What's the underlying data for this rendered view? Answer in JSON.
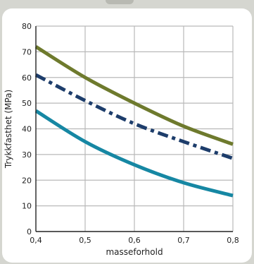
{
  "chart_data": {
    "type": "line",
    "title": "",
    "xlabel": "masseforhold",
    "ylabel": "Trykkfasthet (MPa)",
    "xlim": [
      0.4,
      0.8
    ],
    "ylim": [
      0,
      80
    ],
    "grid": true,
    "legend": "none",
    "x_ticks": [
      {
        "value": 0.4,
        "label": "0,4"
      },
      {
        "value": 0.5,
        "label": "0,5"
      },
      {
        "value": 0.6,
        "label": "0,6"
      },
      {
        "value": 0.7,
        "label": "0,7"
      },
      {
        "value": 0.8,
        "label": "0,8"
      }
    ],
    "y_ticks": [
      {
        "value": 0,
        "label": "0"
      },
      {
        "value": 10,
        "label": "10"
      },
      {
        "value": 20,
        "label": "20"
      },
      {
        "value": 30,
        "label": "30"
      },
      {
        "value": 40,
        "label": "40"
      },
      {
        "value": 50,
        "label": "50"
      },
      {
        "value": 60,
        "label": "60"
      },
      {
        "value": 70,
        "label": "70"
      },
      {
        "value": 80,
        "label": "80"
      }
    ],
    "series": [
      {
        "color": "#6e7a2d",
        "style": "solid",
        "x": [
          0.4,
          0.5,
          0.6,
          0.7,
          0.8
        ],
        "y": [
          72,
          60,
          50,
          41,
          34
        ]
      },
      {
        "color": "#1d3d6b",
        "style": "dash-dot",
        "x": [
          0.4,
          0.5,
          0.6,
          0.7,
          0.8
        ],
        "y": [
          61,
          51,
          42,
          35,
          28.5
        ]
      },
      {
        "color": "#1687a3",
        "style": "solid",
        "x": [
          0.4,
          0.5,
          0.6,
          0.7,
          0.8
        ],
        "y": [
          47,
          35,
          26,
          19,
          14
        ]
      }
    ]
  }
}
